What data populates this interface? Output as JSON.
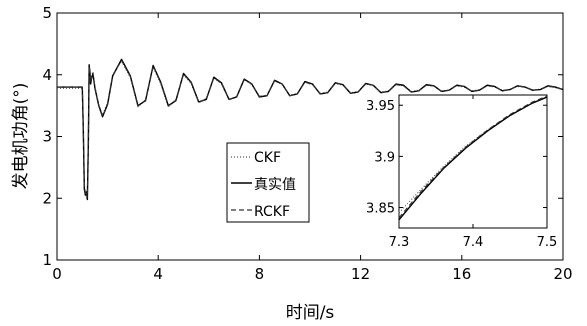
{
  "chart_data": {
    "type": "line",
    "title": "",
    "xlabel": "时间/s",
    "ylabel": "发电机功角(°)",
    "xlim": [
      0,
      20
    ],
    "ylim": [
      1,
      5
    ],
    "xticks": [
      "0",
      "4",
      "8",
      "12",
      "16",
      "20"
    ],
    "yticks": [
      "1",
      "2",
      "3",
      "4",
      "5"
    ],
    "grid": false,
    "legend_position": "center",
    "series": [
      {
        "name": "CKF",
        "style": "dotted",
        "color": "#555555",
        "x": [
          0,
          0.6,
          1.0,
          1.04,
          1.08,
          1.12,
          1.16,
          1.2,
          1.24,
          1.27,
          1.3,
          1.33,
          1.37,
          1.42,
          1.5,
          1.65,
          1.8,
          2.0,
          2.2,
          2.55,
          2.9,
          3.2,
          3.5,
          3.8,
          4.1,
          4.4,
          4.7,
          5.0,
          5.3,
          5.6,
          5.9,
          6.2,
          6.5,
          6.8,
          7.1,
          7.4,
          7.7,
          8.0,
          8.3,
          8.6,
          8.9,
          9.2,
          9.5,
          9.8,
          10.1,
          10.4,
          10.7,
          11.0,
          11.3,
          11.6,
          11.9,
          12.2,
          12.5,
          12.8,
          13.1,
          13.4,
          13.7,
          14.0,
          14.3,
          14.6,
          14.9,
          15.2,
          15.5,
          15.8,
          16.1,
          16.4,
          16.7,
          17.0,
          17.3,
          17.6,
          17.9,
          18.2,
          18.5,
          18.8,
          19.1,
          19.4,
          19.7,
          20.0
        ],
        "y": [
          3.78,
          3.78,
          3.78,
          3.1,
          2.2,
          2.08,
          2.12,
          2.06,
          3.0,
          4.12,
          4.02,
          3.9,
          3.98,
          4.05,
          3.8,
          3.52,
          3.35,
          3.55,
          4.0,
          4.22,
          3.95,
          3.48,
          3.6,
          4.12,
          3.85,
          3.48,
          3.6,
          4.0,
          3.86,
          3.55,
          3.62,
          3.95,
          3.85,
          3.6,
          3.65,
          3.92,
          3.84,
          3.65,
          3.67,
          3.9,
          3.84,
          3.67,
          3.7,
          3.88,
          3.84,
          3.7,
          3.72,
          3.86,
          3.83,
          3.71,
          3.73,
          3.85,
          3.82,
          3.72,
          3.74,
          3.84,
          3.82,
          3.73,
          3.75,
          3.83,
          3.81,
          3.74,
          3.75,
          3.82,
          3.8,
          3.74,
          3.76,
          3.82,
          3.8,
          3.75,
          3.76,
          3.81,
          3.8,
          3.75,
          3.77,
          3.81,
          3.79,
          3.76
        ]
      },
      {
        "name": "真实值",
        "style": "solid",
        "color": "#000000",
        "x": [
          0,
          0.6,
          1.0,
          1.04,
          1.08,
          1.12,
          1.16,
          1.2,
          1.24,
          1.27,
          1.3,
          1.33,
          1.37,
          1.42,
          1.5,
          1.65,
          1.8,
          2.0,
          2.2,
          2.55,
          2.9,
          3.2,
          3.5,
          3.8,
          4.1,
          4.4,
          4.7,
          5.0,
          5.3,
          5.6,
          5.9,
          6.2,
          6.5,
          6.8,
          7.1,
          7.4,
          7.7,
          8.0,
          8.3,
          8.6,
          8.9,
          9.2,
          9.5,
          9.8,
          10.1,
          10.4,
          10.7,
          11.0,
          11.3,
          11.6,
          11.9,
          12.2,
          12.5,
          12.8,
          13.1,
          13.4,
          13.7,
          14.0,
          14.3,
          14.6,
          14.9,
          15.2,
          15.5,
          15.8,
          16.1,
          16.4,
          16.7,
          17.0,
          17.3,
          17.6,
          17.9,
          18.2,
          18.5,
          18.8,
          19.1,
          19.4,
          19.7,
          20.0
        ],
        "y": [
          3.8,
          3.8,
          3.8,
          3.1,
          2.15,
          2.05,
          2.1,
          1.98,
          2.9,
          4.16,
          4.05,
          3.85,
          3.95,
          4.02,
          3.78,
          3.5,
          3.32,
          3.52,
          3.98,
          4.25,
          3.98,
          3.5,
          3.58,
          4.15,
          3.88,
          3.5,
          3.58,
          4.02,
          3.88,
          3.56,
          3.6,
          3.96,
          3.87,
          3.6,
          3.64,
          3.93,
          3.85,
          3.64,
          3.66,
          3.91,
          3.85,
          3.66,
          3.69,
          3.89,
          3.85,
          3.69,
          3.71,
          3.87,
          3.84,
          3.7,
          3.72,
          3.86,
          3.83,
          3.71,
          3.73,
          3.85,
          3.83,
          3.72,
          3.74,
          3.84,
          3.82,
          3.73,
          3.75,
          3.83,
          3.81,
          3.73,
          3.75,
          3.83,
          3.81,
          3.74,
          3.76,
          3.82,
          3.8,
          3.75,
          3.76,
          3.82,
          3.8,
          3.76
        ]
      },
      {
        "name": "RCKF",
        "style": "dashed",
        "color": "#333333",
        "x": [
          0,
          0.6,
          1.0,
          1.04,
          1.08,
          1.12,
          1.16,
          1.2,
          1.24,
          1.27,
          1.3,
          1.33,
          1.37,
          1.42,
          1.5,
          1.65,
          1.8,
          2.0,
          2.2,
          2.55,
          2.9,
          3.2,
          3.5,
          3.8,
          4.1,
          4.4,
          4.7,
          5.0,
          5.3,
          5.6,
          5.9,
          6.2,
          6.5,
          6.8,
          7.1,
          7.4,
          7.7,
          8.0,
          8.3,
          8.6,
          8.9,
          9.2,
          9.5,
          9.8,
          10.1,
          10.4,
          10.7,
          11.0,
          11.3,
          11.6,
          11.9,
          12.2,
          12.5,
          12.8,
          13.1,
          13.4,
          13.7,
          14.0,
          14.3,
          14.6,
          14.9,
          15.2,
          15.5,
          15.8,
          16.1,
          16.4,
          16.7,
          17.0,
          17.3,
          17.6,
          17.9,
          18.2,
          18.5,
          18.8,
          19.1,
          19.4,
          19.7,
          20.0
        ],
        "y": [
          3.8,
          3.8,
          3.8,
          3.1,
          2.18,
          2.07,
          2.11,
          2.02,
          2.95,
          4.14,
          4.03,
          3.88,
          3.96,
          4.03,
          3.79,
          3.51,
          3.33,
          3.53,
          3.99,
          4.23,
          3.97,
          3.49,
          3.59,
          4.14,
          3.87,
          3.49,
          3.59,
          4.01,
          3.87,
          3.55,
          3.61,
          3.95,
          3.86,
          3.6,
          3.64,
          3.92,
          3.85,
          3.65,
          3.66,
          3.9,
          3.85,
          3.66,
          3.69,
          3.88,
          3.84,
          3.69,
          3.71,
          3.86,
          3.84,
          3.7,
          3.72,
          3.85,
          3.83,
          3.71,
          3.73,
          3.84,
          3.82,
          3.72,
          3.74,
          3.83,
          3.82,
          3.73,
          3.75,
          3.83,
          3.81,
          3.73,
          3.75,
          3.82,
          3.81,
          3.74,
          3.76,
          3.82,
          3.8,
          3.75,
          3.76,
          3.81,
          3.8,
          3.76
        ]
      }
    ],
    "inset": {
      "xlim": [
        7.3,
        7.5
      ],
      "ylim": [
        3.83,
        3.96
      ],
      "xticks": [
        "7.3",
        "7.4",
        "7.5"
      ],
      "yticks": [
        "3.85",
        "3.9",
        "3.95"
      ],
      "series": [
        {
          "name": "CKF",
          "style": "dotted",
          "color": "#555555",
          "x": [
            7.3,
            7.33,
            7.36,
            7.39,
            7.42,
            7.45,
            7.48,
            7.5
          ],
          "y": [
            3.845,
            3.868,
            3.89,
            3.91,
            3.926,
            3.94,
            3.952,
            3.958
          ]
        },
        {
          "name": "真实值",
          "style": "solid",
          "color": "#000000",
          "x": [
            7.3,
            7.33,
            7.36,
            7.39,
            7.42,
            7.45,
            7.48,
            7.5
          ],
          "y": [
            3.838,
            3.864,
            3.888,
            3.908,
            3.925,
            3.94,
            3.952,
            3.958
          ]
        },
        {
          "name": "RCKF",
          "style": "dashed",
          "color": "#333333",
          "x": [
            7.3,
            7.33,
            7.36,
            7.39,
            7.42,
            7.45,
            7.48,
            7.5
          ],
          "y": [
            3.84,
            3.866,
            3.889,
            3.909,
            3.926,
            3.941,
            3.953,
            3.959
          ]
        }
      ]
    }
  }
}
